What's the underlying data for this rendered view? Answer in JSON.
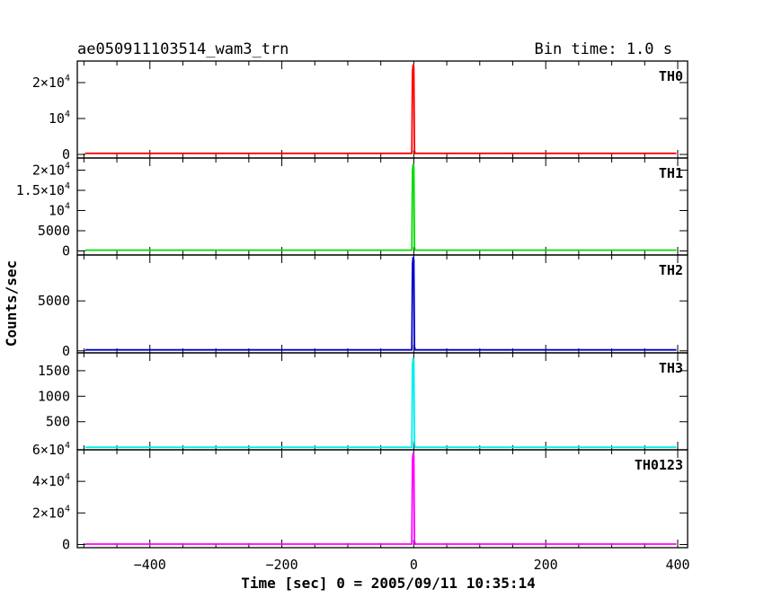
{
  "title_left": "ae050911103514_wam3_trn",
  "title_right": "Bin time: 1.0 s",
  "xlabel": "Time [sec] 0 = 2005/09/11 10:35:14",
  "ylabel": "Counts/sec",
  "chart_data": {
    "type": "line",
    "x_range": [
      -510,
      415
    ],
    "x_ticks": [
      -400,
      -200,
      0,
      200,
      400
    ],
    "x_tick_labels": [
      "−400",
      "−200",
      "0",
      "200",
      "400"
    ],
    "panels": [
      {
        "name": "TH0",
        "color": "#ff0000",
        "ylim": [
          -1000,
          26000
        ],
        "ytick_labels": [
          {
            "v": 20000,
            "base": "2×10",
            "exp": "4"
          },
          {
            "v": 10000,
            "base": "10",
            "exp": "4"
          },
          {
            "v": 0,
            "base": "0",
            "exp": ""
          }
        ],
        "baseline": 300,
        "peak": 25000
      },
      {
        "name": "TH1",
        "color": "#00dd00",
        "ylim": [
          -1000,
          23000
        ],
        "ytick_labels": [
          {
            "v": 20000,
            "base": "2×10",
            "exp": "4"
          },
          {
            "v": 15000,
            "base": "1.5×10",
            "exp": "4"
          },
          {
            "v": 10000,
            "base": "10",
            "exp": "4"
          },
          {
            "v": 5000,
            "base": "5000",
            "exp": ""
          },
          {
            "v": 0,
            "base": "0",
            "exp": ""
          }
        ],
        "baseline": 200,
        "peak": 21500
      },
      {
        "name": "TH2",
        "color": "#0000cc",
        "ylim": [
          -200,
          9600
        ],
        "ytick_labels": [
          {
            "v": 5000,
            "base": "5000",
            "exp": ""
          },
          {
            "v": 0,
            "base": "0",
            "exp": ""
          }
        ],
        "baseline": 100,
        "peak": 9400
      },
      {
        "name": "TH3",
        "color": "#00eeee",
        "ylim": [
          -50,
          1850
        ],
        "ytick_labels": [
          {
            "v": 1500,
            "base": "1500",
            "exp": ""
          },
          {
            "v": 1000,
            "base": "1000",
            "exp": ""
          },
          {
            "v": 500,
            "base": "500",
            "exp": ""
          }
        ],
        "baseline": 0,
        "peak": 1750
      },
      {
        "name": "TH0123",
        "color": "#ff00ff",
        "ylim": [
          -2000,
          60000
        ],
        "ytick_labels": [
          {
            "v": 60000,
            "base": "6×10",
            "exp": "4"
          },
          {
            "v": 40000,
            "base": "4×10",
            "exp": "4"
          },
          {
            "v": 20000,
            "base": "2×10",
            "exp": "4"
          },
          {
            "v": 0,
            "base": "0",
            "exp": ""
          }
        ],
        "baseline": 300,
        "peak": 58000
      }
    ],
    "pulse_x": [
      -3,
      -2,
      -1,
      0,
      1,
      2,
      3
    ]
  }
}
